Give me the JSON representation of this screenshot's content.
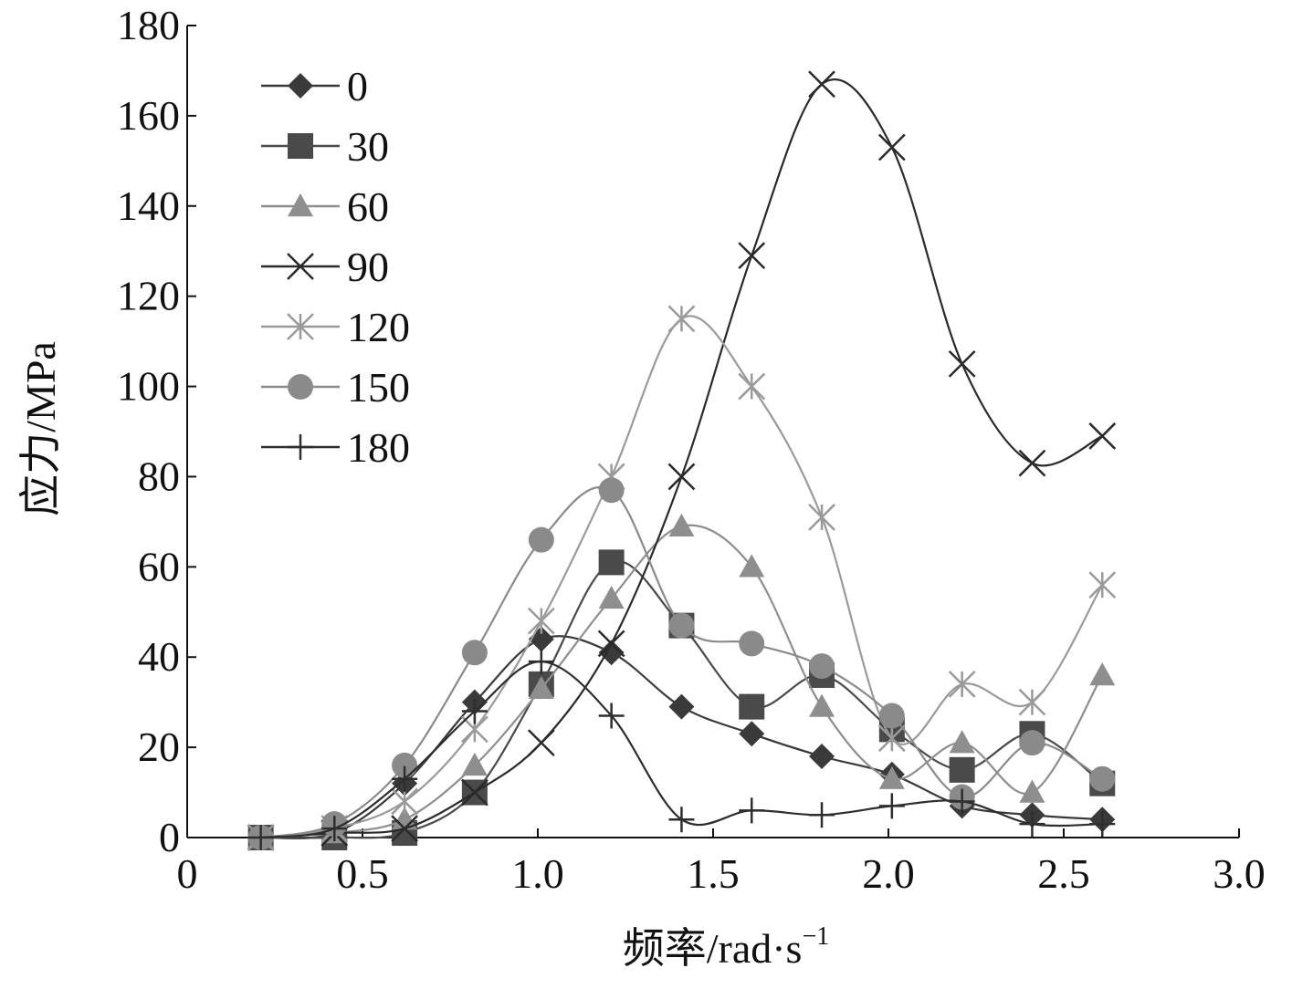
{
  "chart_data": {
    "type": "line",
    "xlabel": "频率/rad·s",
    "xlabel_sup": "−1",
    "ylabel": "应力/MPa",
    "xlim": [
      0,
      3.0
    ],
    "ylim": [
      0,
      180
    ],
    "x_ticks": [
      0,
      0.5,
      1.0,
      1.5,
      2.0,
      2.5,
      3.0
    ],
    "x_tick_labels": [
      "0",
      "0.5",
      "1.0",
      "1.5",
      "2.0",
      "2.5",
      "3.0"
    ],
    "y_ticks": [
      0,
      20,
      40,
      60,
      80,
      100,
      120,
      140,
      160,
      180
    ],
    "y_tick_labels": [
      "0",
      "20",
      "40",
      "60",
      "80",
      "100",
      "120",
      "140",
      "160",
      "180"
    ],
    "grid": false,
    "legend_position": "top-left",
    "x": [
      0.21,
      0.42,
      0.62,
      0.82,
      1.01,
      1.21,
      1.41,
      1.61,
      1.81,
      2.01,
      2.21,
      2.41,
      2.61
    ],
    "series": [
      {
        "name": "0",
        "marker": "diamond",
        "color": "#3a3a3a",
        "values": [
          0,
          1,
          12,
          30,
          44,
          41,
          29,
          23,
          18,
          14,
          7,
          5,
          4
        ]
      },
      {
        "name": "30",
        "marker": "square",
        "color": "#4a4a4a",
        "values": [
          0,
          0,
          1,
          10,
          34,
          61,
          47,
          29,
          36,
          24,
          15,
          23,
          12
        ]
      },
      {
        "name": "60",
        "marker": "triangle",
        "color": "#8e8e8e",
        "values": [
          0,
          1,
          4,
          16,
          33,
          53,
          69,
          60,
          29,
          13,
          21,
          10,
          36
        ]
      },
      {
        "name": "90",
        "marker": "x",
        "color": "#2a2a2a",
        "values": [
          0,
          1,
          2,
          10,
          21,
          43,
          80,
          129,
          167,
          153,
          105,
          83,
          89
        ]
      },
      {
        "name": "120",
        "marker": "asterisk",
        "color": "#9a9a9a",
        "values": [
          0,
          2,
          8,
          24,
          48,
          80,
          115,
          100,
          71,
          22,
          34,
          30,
          56
        ]
      },
      {
        "name": "150",
        "marker": "circle",
        "color": "#8a8a8a",
        "values": [
          0,
          3,
          16,
          41,
          66,
          77,
          47,
          43,
          38,
          27,
          9,
          21,
          13
        ]
      },
      {
        "name": "180",
        "marker": "plus",
        "color": "#2e2e2e",
        "values": [
          0,
          2,
          13,
          28,
          39,
          27,
          4,
          6,
          5,
          7,
          8,
          3,
          3
        ]
      }
    ]
  }
}
